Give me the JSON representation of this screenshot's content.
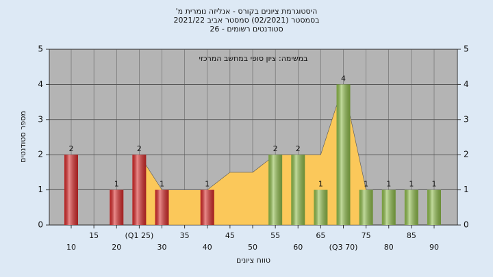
{
  "chart_data": {
    "type": "bar",
    "title": [
      "היסטוגרמת ציונים בקורס - אנליזה נומרית מ'",
      "בסמסטר (02/2021) סמסטר אביב 2021/22",
      "סטודנטים רשומים - 26"
    ],
    "annotation": "במשימה: ציון סופי במחשב המרכזי",
    "x_label": "טווח ציונים",
    "y_label": "מספר סטודנטים",
    "categories": [
      "10",
      "15",
      "20",
      "(Q1 25)",
      "30",
      "35",
      "40",
      "45",
      "50",
      "55",
      "60",
      "65",
      "(Q3 70)",
      "75",
      "80",
      "85",
      "90"
    ],
    "values": [
      2,
      0,
      1,
      2,
      1,
      0,
      1,
      0,
      0,
      2,
      2,
      1,
      4,
      1,
      1,
      1,
      1
    ],
    "colors": [
      "#d92b2b",
      "#d92b2b",
      "#d92b2b",
      "#d92b2b",
      "#d92b2b",
      "#d92b2b",
      "#d92b2b",
      "#8fbd4b",
      "#8fbd4b",
      "#8fbd4b",
      "#8fbd4b",
      "#8fbd4b",
      "#8fbd4b",
      "#8fbd4b",
      "#8fbd4b",
      "#8fbd4b",
      "#8fbd4b"
    ],
    "area": {
      "color": "#fbc85a",
      "values": [
        null,
        null,
        null,
        2,
        1,
        1,
        1,
        1.5,
        1.5,
        2,
        2,
        2,
        4,
        1,
        null,
        null,
        null
      ]
    },
    "ylim": [
      0,
      5
    ],
    "yticks": [
      0,
      1,
      2,
      3,
      4,
      5
    ],
    "grid": true
  }
}
